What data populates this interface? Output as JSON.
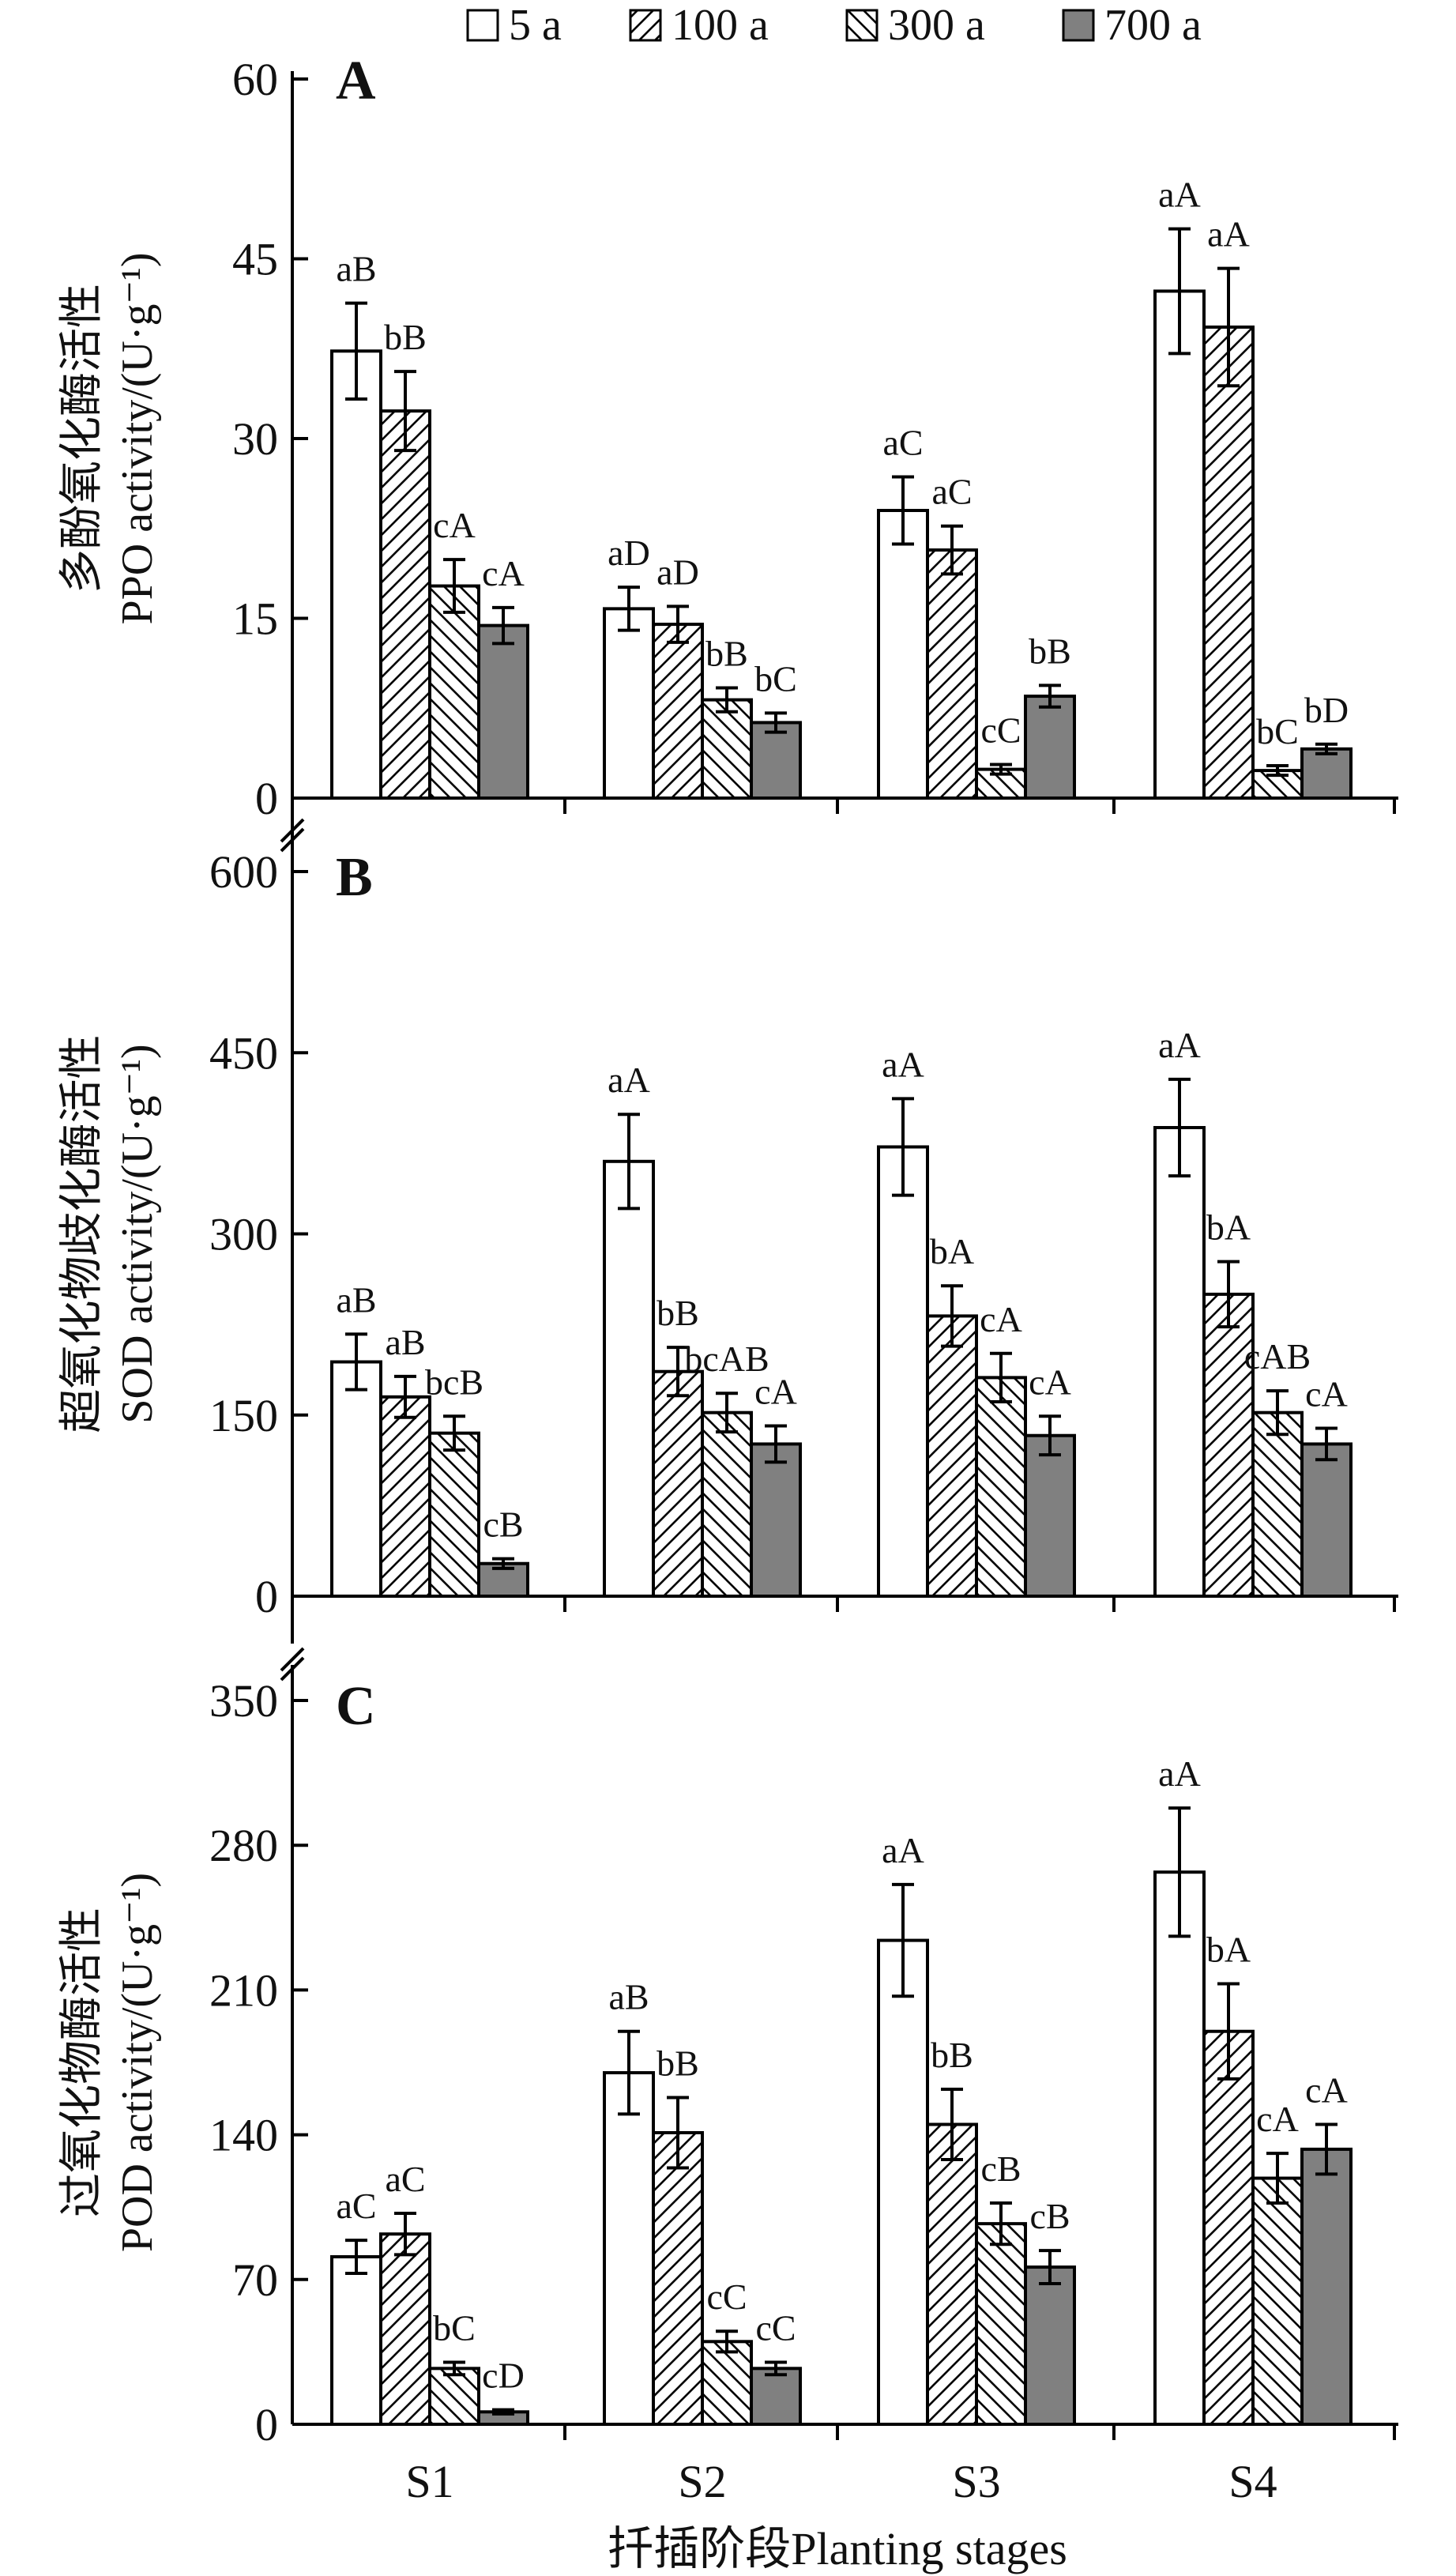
{
  "colors": {
    "axis": "#000000",
    "bar_outline": "#000000",
    "series_5a": "#ffffff",
    "series_700a": "#808080"
  },
  "legend": {
    "position": "top-center",
    "items": [
      {
        "label": "5 a",
        "pattern": "solid-white"
      },
      {
        "label": "100 a",
        "pattern": "diagonal-hatch-forward"
      },
      {
        "label": "300 a",
        "pattern": "diagonal-hatch-backward"
      },
      {
        "label": "700 a",
        "pattern": "solid-gray"
      }
    ]
  },
  "xlabel": "扦插阶段Planting stages",
  "chart_data": [
    {
      "type": "bar",
      "panel": "A",
      "ylabel_cn": "多酚氧化酶活性",
      "ylabel_en": "PPO activity/(U·g⁻¹)",
      "ylim": [
        0,
        60
      ],
      "yticks": [
        0,
        15,
        30,
        45,
        60
      ],
      "categories": [
        "S1",
        "S2",
        "S3",
        "S4"
      ],
      "series": [
        {
          "name": "5 a",
          "values": [
            37.3,
            15.8,
            24.0,
            42.3
          ],
          "errors": [
            4.0,
            1.8,
            2.8,
            5.2
          ],
          "labels": [
            "aB",
            "aD",
            "aC",
            "aA"
          ]
        },
        {
          "name": "100 a",
          "values": [
            32.3,
            14.5,
            20.7,
            39.3
          ],
          "errors": [
            3.3,
            1.5,
            2.0,
            4.9
          ],
          "labels": [
            "bB",
            "aD",
            "aC",
            "aA"
          ]
        },
        {
          "name": "300 a",
          "values": [
            17.7,
            8.2,
            2.4,
            2.3
          ],
          "errors": [
            2.2,
            1.0,
            0.4,
            0.4
          ],
          "labels": [
            "cA",
            "bB",
            "cC",
            "bC"
          ]
        },
        {
          "name": "700 a",
          "values": [
            14.4,
            6.3,
            8.5,
            4.1
          ],
          "errors": [
            1.5,
            0.8,
            0.9,
            0.4
          ],
          "labels": [
            "cA",
            "bC",
            "bB",
            "bD"
          ]
        }
      ]
    },
    {
      "type": "bar",
      "panel": "B",
      "ylabel_cn": "超氧化物歧化酶活性",
      "ylabel_en": "SOD activity/(U·g⁻¹)",
      "ylim": [
        0,
        600
      ],
      "yticks": [
        0,
        150,
        300,
        450,
        600
      ],
      "categories": [
        "S1",
        "S2",
        "S3",
        "S4"
      ],
      "series": [
        {
          "name": "5 a",
          "values": [
            194,
            360,
            372,
            388
          ],
          "errors": [
            23,
            39,
            40,
            40
          ],
          "labels": [
            "aB",
            "aA",
            "aA",
            "aA"
          ]
        },
        {
          "name": "100 a",
          "values": [
            165,
            186,
            232,
            250
          ],
          "errors": [
            17,
            20,
            25,
            27
          ],
          "labels": [
            "aB",
            "bB",
            "bA",
            "bA"
          ]
        },
        {
          "name": "300 a",
          "values": [
            135,
            152,
            181,
            152
          ],
          "errors": [
            14,
            16,
            20,
            18
          ],
          "labels": [
            "bcB",
            "bcAB",
            "cA",
            "cAB"
          ]
        },
        {
          "name": "700 a",
          "values": [
            27,
            126,
            133,
            126
          ],
          "errors": [
            4,
            15,
            16,
            13
          ],
          "labels": [
            "cB",
            "cA",
            "cA",
            "cA"
          ]
        }
      ]
    },
    {
      "type": "bar",
      "panel": "C",
      "ylabel_cn": "过氧化物酶活性",
      "ylabel_en": "POD activity/(U·g⁻¹)",
      "ylim": [
        0,
        350
      ],
      "yticks": [
        0,
        70,
        140,
        210,
        280,
        350
      ],
      "categories": [
        "S1",
        "S2",
        "S3",
        "S4"
      ],
      "series": [
        {
          "name": "5 a",
          "values": [
            81,
            170,
            234,
            267
          ],
          "errors": [
            8,
            20,
            27,
            31
          ],
          "labels": [
            "aC",
            "aB",
            "aA",
            "aA"
          ]
        },
        {
          "name": "100 a",
          "values": [
            92,
            141,
            145,
            190
          ],
          "errors": [
            10,
            17,
            17,
            23
          ],
          "labels": [
            "aC",
            "bB",
            "bB",
            "bA"
          ]
        },
        {
          "name": "300 a",
          "values": [
            27,
            40,
            97,
            119
          ],
          "errors": [
            3,
            5,
            10,
            12
          ],
          "labels": [
            "bC",
            "cC",
            "cB",
            "cA"
          ]
        },
        {
          "name": "700 a",
          "values": [
            6,
            27,
            76,
            133
          ],
          "errors": [
            1,
            3,
            8,
            12
          ],
          "labels": [
            "cD",
            "cC",
            "cB",
            "cA"
          ]
        }
      ]
    }
  ]
}
